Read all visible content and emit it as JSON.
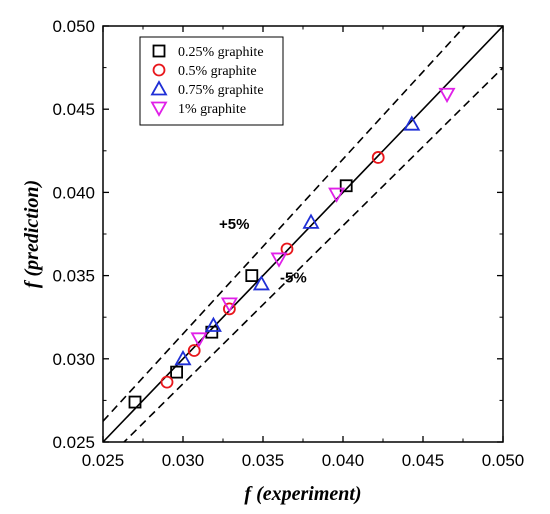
{
  "chart_data": {
    "type": "scatter",
    "title": "",
    "xlabel": "f (experiment)",
    "ylabel": "f (prediction)",
    "xlim": [
      0.025,
      0.05
    ],
    "ylim": [
      0.025,
      0.05
    ],
    "xticks": [
      "0.025",
      "0.030",
      "0.035",
      "0.040",
      "0.045",
      "0.050"
    ],
    "yticks": [
      "0.025",
      "0.030",
      "0.035",
      "0.040",
      "0.045",
      "0.050"
    ],
    "legend_position": "top-left",
    "grid": false,
    "series": [
      {
        "name": "0.25% graphite",
        "marker": "square",
        "color": "#000000",
        "points": [
          [
            0.027,
            0.0274
          ],
          [
            0.0296,
            0.0292
          ],
          [
            0.0318,
            0.0316
          ],
          [
            0.0343,
            0.035
          ],
          [
            0.0402,
            0.0404
          ]
        ]
      },
      {
        "name": "0.5% graphite",
        "marker": "circle",
        "color": "#e8161b",
        "points": [
          [
            0.029,
            0.0286
          ],
          [
            0.0307,
            0.0305
          ],
          [
            0.0329,
            0.033
          ],
          [
            0.0365,
            0.0366
          ],
          [
            0.0422,
            0.0421
          ]
        ]
      },
      {
        "name": "0.75% graphite",
        "marker": "triangle-up",
        "color": "#1f2fd6",
        "points": [
          [
            0.03,
            0.03
          ],
          [
            0.0319,
            0.032
          ],
          [
            0.0349,
            0.0345
          ],
          [
            0.038,
            0.0382
          ],
          [
            0.0443,
            0.0441
          ]
        ]
      },
      {
        "name": "1% graphite",
        "marker": "triangle-down",
        "color": "#e020e8",
        "points": [
          [
            0.031,
            0.0312
          ],
          [
            0.0329,
            0.0333
          ],
          [
            0.036,
            0.036
          ],
          [
            0.0396,
            0.0399
          ],
          [
            0.0465,
            0.0459
          ]
        ]
      }
    ],
    "reference_lines": [
      {
        "slope": 1.0,
        "style": "solid"
      },
      {
        "slope": 1.05,
        "style": "dashed",
        "label": "+5%"
      },
      {
        "slope": 0.95,
        "style": "dashed",
        "label": "-5%"
      }
    ],
    "annotations": [
      {
        "text": "+5%",
        "x": 0.0332,
        "y": 0.0378
      },
      {
        "text": "-5%",
        "x": 0.0369,
        "y": 0.0346
      }
    ]
  }
}
